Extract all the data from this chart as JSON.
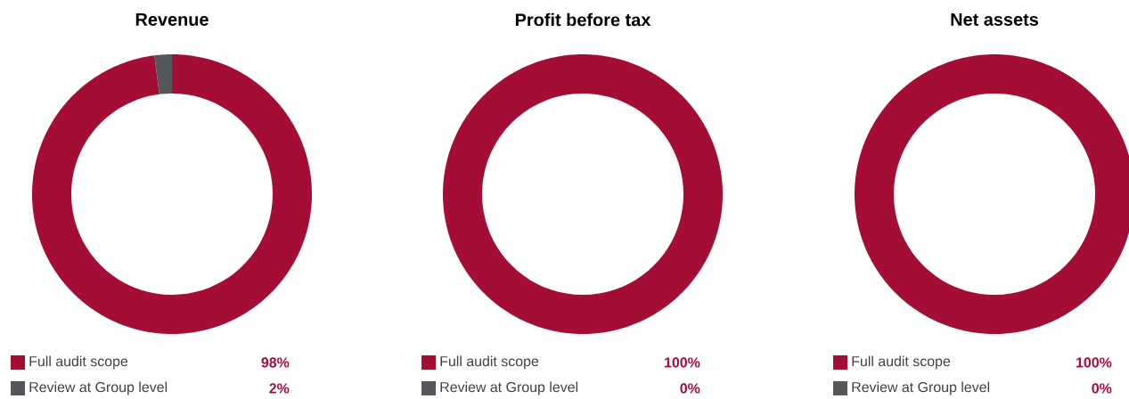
{
  "chart_data": [
    {
      "type": "donut",
      "title": "Revenue",
      "categories": [
        "Full audit scope",
        "Review at Group level"
      ],
      "values": [
        98,
        2
      ],
      "colors": [
        "#a50e34",
        "#54585d"
      ],
      "value_labels": [
        "98%",
        "2%"
      ],
      "legend": "bottom"
    },
    {
      "type": "donut",
      "title": "Profit before tax",
      "categories": [
        "Full audit scope",
        "Review at Group level"
      ],
      "values": [
        100,
        0
      ],
      "colors": [
        "#a50e34",
        "#54585d"
      ],
      "value_labels": [
        "100%",
        "0%"
      ],
      "legend": "bottom"
    },
    {
      "type": "donut",
      "title": "Net assets",
      "categories": [
        "Full audit scope",
        "Review at Group level"
      ],
      "values": [
        100,
        0
      ],
      "colors": [
        "#a50e34",
        "#54585d"
      ],
      "value_labels": [
        "100%",
        "0%"
      ],
      "legend": "bottom"
    }
  ]
}
